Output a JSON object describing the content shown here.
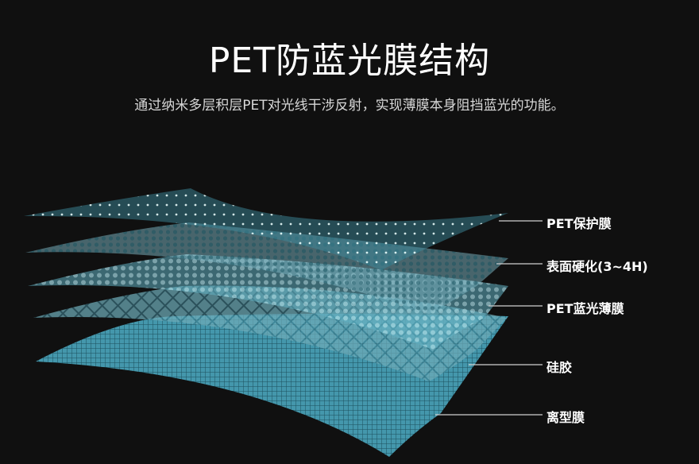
{
  "header": {
    "title": "PET防蓝光膜结构",
    "subtitle": "通过纳米多层积层PET对光线干涉反射，实现薄膜本身阻挡蓝光的功能。"
  },
  "layers": [
    {
      "label": "PET保护膜"
    },
    {
      "label": "表面硬化(3~4H)"
    },
    {
      "label": "PET蓝光薄膜"
    },
    {
      "label": "硅胶"
    },
    {
      "label": "离型膜"
    }
  ],
  "colors": {
    "background": "#101010",
    "film": "#6fc4d4",
    "line": "#cfcfcf"
  }
}
